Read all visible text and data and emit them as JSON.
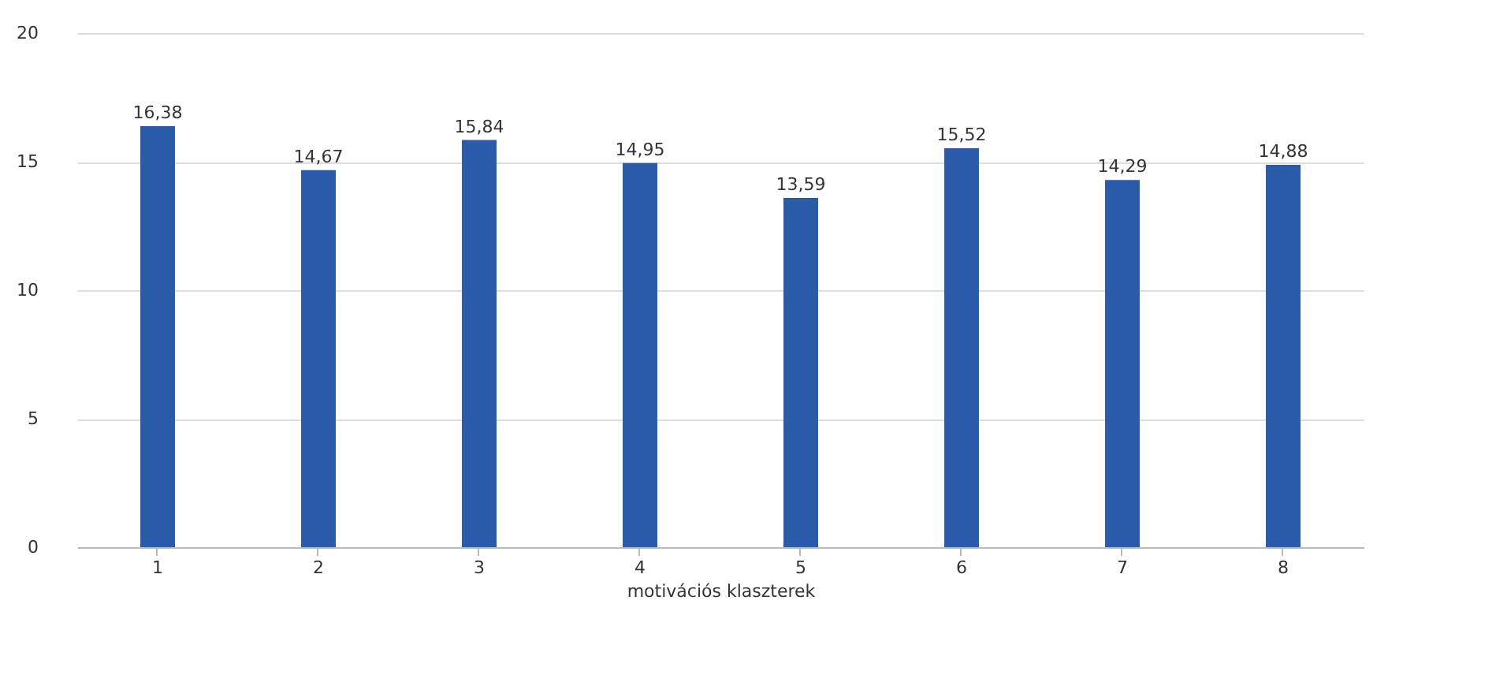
{
  "chart_data": {
    "type": "bar",
    "xlabel": "motivációs klaszterek",
    "categories": [
      "1",
      "2",
      "3",
      "4",
      "5",
      "6",
      "7",
      "8"
    ],
    "values": [
      16.38,
      14.67,
      15.84,
      14.95,
      13.59,
      15.52,
      14.29,
      14.88
    ],
    "value_labels": [
      "16,38",
      "14,67",
      "15,84",
      "14,95",
      "13,59",
      "15,52",
      "14,29",
      "14,88"
    ],
    "color": "#2a5caa",
    "ylim": [
      0,
      20
    ],
    "yticks": [
      0,
      5,
      10,
      15,
      20
    ],
    "grid": "y"
  }
}
